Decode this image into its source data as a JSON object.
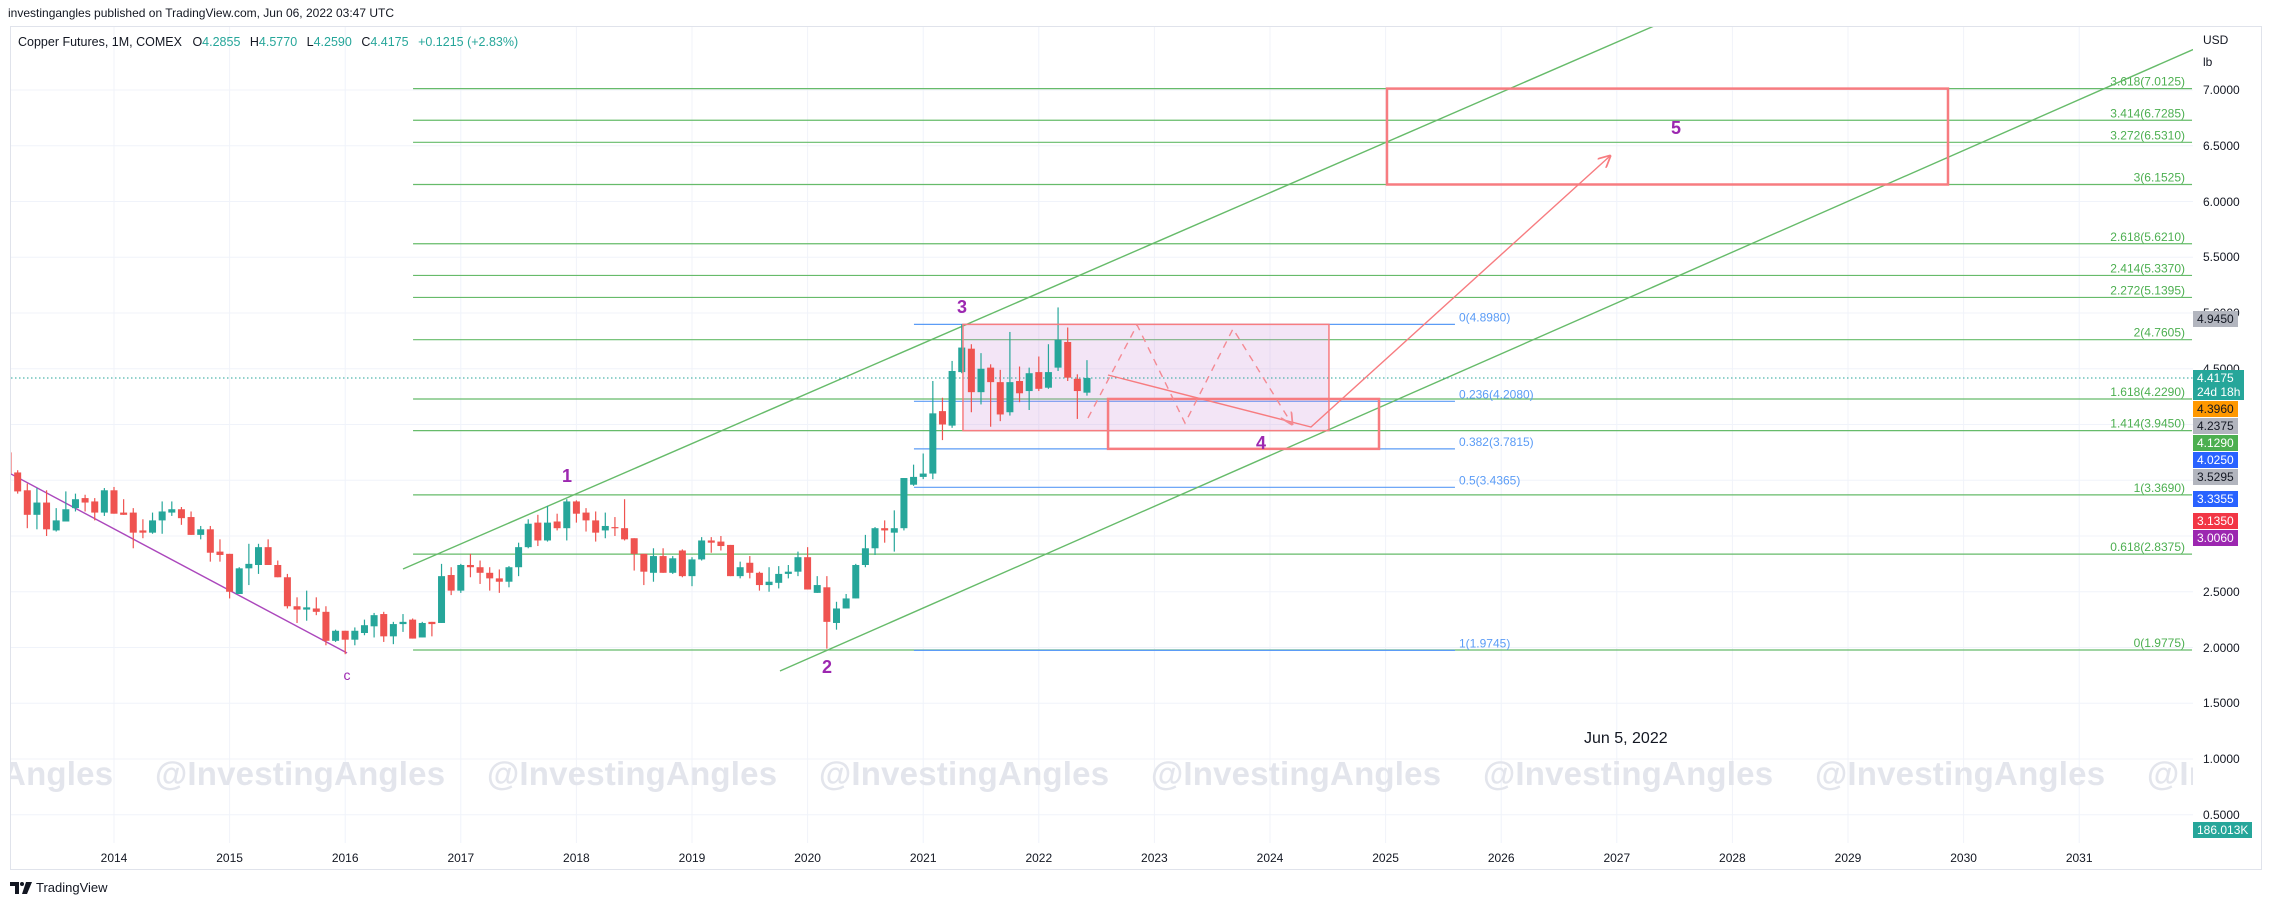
{
  "header": {
    "published": "investingangles published on TradingView.com, Jun 06, 2022 03:47 UTC"
  },
  "legend": {
    "symbol": "Copper Futures, 1M, COMEX",
    "open_label": "O",
    "open": "4.2855",
    "high_label": "H",
    "high": "4.5770",
    "low_label": "L",
    "low": "4.2590",
    "close_label": "C",
    "close": "4.4175",
    "change": "+0.1215 (+2.83%)"
  },
  "price_axis": {
    "currency": "USD",
    "unit": "lb",
    "ticks": [
      {
        "p": 7.0,
        "label": "7.0000"
      },
      {
        "p": 6.5,
        "label": "6.5000"
      },
      {
        "p": 6.0,
        "label": "6.0000"
      },
      {
        "p": 5.5,
        "label": "5.5000"
      },
      {
        "p": 5.0,
        "label": "5.0000"
      },
      {
        "p": 4.5,
        "label": "4.5000"
      },
      {
        "p": 2.5,
        "label": "2.5000"
      },
      {
        "p": 2.0,
        "label": "2.0000"
      },
      {
        "p": 1.5,
        "label": "1.5000"
      },
      {
        "p": 1.0,
        "label": "1.0000"
      },
      {
        "p": 0.5,
        "label": "0.5000"
      }
    ]
  },
  "price_badges": [
    {
      "label": "4.9450",
      "p": 4.945,
      "bg": "#b2b5be",
      "fg": "#131722"
    },
    {
      "label": "4.4175",
      "sub": "24d 18h",
      "p": 4.4175,
      "bg": "#26a69a",
      "fg": "#ffffff"
    },
    {
      "label": "4.3960",
      "p": 4.396,
      "bg": "#ff9800",
      "fg": "#131722"
    },
    {
      "label": "4.2375",
      "p": 4.2375,
      "bg": "#b2b5be",
      "fg": "#131722"
    },
    {
      "label": "4.1290",
      "p": 4.129,
      "bg": "#4caf50",
      "fg": "#ffffff"
    },
    {
      "label": "4.0250",
      "p": 4.025,
      "bg": "#2962ff",
      "fg": "#ffffff"
    },
    {
      "label": "3.5295",
      "p": 3.5295,
      "bg": "#b2b5be",
      "fg": "#131722"
    },
    {
      "label": "3.3355",
      "p": 3.3355,
      "bg": "#2962ff",
      "fg": "#ffffff"
    },
    {
      "label": "3.1350",
      "p": 3.135,
      "bg": "#f23645",
      "fg": "#ffffff"
    },
    {
      "label": "3.0060",
      "p": 3.006,
      "bg": "#9c27b0",
      "fg": "#ffffff"
    }
  ],
  "volume_badge": {
    "label": "186.013K",
    "bg": "#26a69a"
  },
  "time_axis": {
    "ticks": [
      "2014",
      "2015",
      "2016",
      "2017",
      "2018",
      "2019",
      "2020",
      "2021",
      "2022",
      "2023",
      "2024",
      "2025",
      "2026",
      "2027",
      "2028",
      "2029",
      "2030",
      "2031"
    ]
  },
  "date_label": "Jun 5, 2022",
  "watermark": {
    "text": "@InvestingAngles"
  },
  "footer": {
    "brand": "TradingView"
  },
  "colors": {
    "up": "#26a69a",
    "down": "#ef5350",
    "wave_label": "#9c27b0",
    "grid": "#f0f3fa"
  },
  "chart_data": {
    "type": "candlestick",
    "title": "Copper Futures, 1M, COMEX",
    "interval": "1M",
    "xlabel": "",
    "ylabel": "USD / lb",
    "ylim": [
      0.5,
      7.0
    ],
    "grid": true,
    "last_price": 4.4175,
    "candles": {
      "start": "2013-02",
      "fields": [
        "open",
        "high",
        "low",
        "close"
      ],
      "ohlc": [
        [
          3.75,
          3.76,
          3.55,
          3.56
        ],
        [
          3.57,
          3.59,
          3.38,
          3.4
        ],
        [
          3.41,
          3.47,
          3.07,
          3.19
        ],
        [
          3.19,
          3.43,
          3.06,
          3.3
        ],
        [
          3.3,
          3.41,
          3.0,
          3.06
        ],
        [
          3.05,
          3.25,
          3.04,
          3.14
        ],
        [
          3.13,
          3.4,
          3.13,
          3.24
        ],
        [
          3.25,
          3.38,
          3.22,
          3.33
        ],
        [
          3.34,
          3.37,
          3.22,
          3.3
        ],
        [
          3.31,
          3.34,
          3.14,
          3.21
        ],
        [
          3.21,
          3.43,
          3.18,
          3.41
        ],
        [
          3.41,
          3.44,
          3.2,
          3.2
        ],
        [
          3.21,
          3.33,
          3.19,
          3.19
        ],
        [
          3.21,
          3.25,
          2.89,
          3.03
        ],
        [
          3.05,
          3.15,
          2.98,
          3.03
        ],
        [
          3.03,
          3.21,
          3.02,
          3.14
        ],
        [
          3.14,
          3.31,
          3.02,
          3.22
        ],
        [
          3.21,
          3.31,
          3.18,
          3.24
        ],
        [
          3.24,
          3.26,
          3.1,
          3.16
        ],
        [
          3.17,
          3.22,
          3.01,
          3.01
        ],
        [
          3.01,
          3.09,
          2.97,
          3.06
        ],
        [
          3.06,
          3.09,
          2.77,
          2.85
        ],
        [
          2.86,
          2.97,
          2.77,
          2.83
        ],
        [
          2.84,
          2.84,
          2.44,
          2.5
        ],
        [
          2.48,
          2.72,
          2.48,
          2.71
        ],
        [
          2.71,
          2.93,
          2.56,
          2.75
        ],
        [
          2.74,
          2.93,
          2.66,
          2.9
        ],
        [
          2.9,
          2.97,
          2.74,
          2.74
        ],
        [
          2.74,
          2.78,
          2.63,
          2.63
        ],
        [
          2.63,
          2.66,
          2.35,
          2.37
        ],
        [
          2.37,
          2.45,
          2.22,
          2.34
        ],
        [
          2.34,
          2.51,
          2.24,
          2.36
        ],
        [
          2.35,
          2.45,
          2.29,
          2.32
        ],
        [
          2.32,
          2.37,
          2.02,
          2.06
        ],
        [
          2.06,
          2.16,
          2.05,
          2.15
        ],
        [
          2.15,
          2.15,
          1.94,
          2.07
        ],
        [
          2.07,
          2.18,
          2.02,
          2.15
        ],
        [
          2.13,
          2.25,
          2.11,
          2.2
        ],
        [
          2.19,
          2.31,
          2.09,
          2.29
        ],
        [
          2.3,
          2.32,
          2.05,
          2.1
        ],
        [
          2.1,
          2.23,
          2.03,
          2.21
        ],
        [
          2.21,
          2.3,
          2.14,
          2.23
        ],
        [
          2.25,
          2.26,
          2.08,
          2.08
        ],
        [
          2.09,
          2.23,
          2.09,
          2.22
        ],
        [
          2.23,
          2.23,
          2.1,
          2.21
        ],
        [
          2.22,
          2.75,
          2.22,
          2.64
        ],
        [
          2.65,
          2.72,
          2.47,
          2.51
        ],
        [
          2.51,
          2.75,
          2.49,
          2.74
        ],
        [
          2.74,
          2.84,
          2.63,
          2.72
        ],
        [
          2.72,
          2.78,
          2.57,
          2.67
        ],
        [
          2.67,
          2.72,
          2.51,
          2.62
        ],
        [
          2.62,
          2.7,
          2.49,
          2.59
        ],
        [
          2.59,
          2.73,
          2.54,
          2.72
        ],
        [
          2.72,
          2.94,
          2.64,
          2.9
        ],
        [
          2.9,
          3.15,
          2.89,
          3.11
        ],
        [
          3.12,
          3.19,
          2.91,
          2.96
        ],
        [
          2.96,
          3.27,
          2.95,
          3.12
        ],
        [
          3.13,
          3.2,
          3.05,
          3.07
        ],
        [
          3.07,
          3.33,
          2.96,
          3.31
        ],
        [
          3.31,
          3.32,
          3.12,
          3.2
        ],
        [
          3.21,
          3.25,
          3.04,
          3.14
        ],
        [
          3.14,
          3.22,
          2.95,
          3.03
        ],
        [
          3.05,
          3.21,
          2.98,
          3.09
        ],
        [
          3.08,
          3.17,
          3.0,
          3.07
        ],
        [
          3.07,
          3.33,
          2.96,
          2.97
        ],
        [
          2.98,
          2.98,
          2.69,
          2.84
        ],
        [
          2.84,
          2.84,
          2.56,
          2.68
        ],
        [
          2.67,
          2.89,
          2.59,
          2.82
        ],
        [
          2.82,
          2.89,
          2.67,
          2.67
        ],
        [
          2.67,
          2.82,
          2.66,
          2.8
        ],
        [
          2.87,
          2.88,
          2.63,
          2.64
        ],
        [
          2.64,
          2.81,
          2.55,
          2.79
        ],
        [
          2.79,
          2.99,
          2.78,
          2.96
        ],
        [
          2.96,
          2.99,
          2.85,
          2.94
        ],
        [
          2.95,
          3.0,
          2.87,
          2.91
        ],
        [
          2.92,
          2.92,
          2.64,
          2.64
        ],
        [
          2.64,
          2.77,
          2.62,
          2.72
        ],
        [
          2.76,
          2.82,
          2.62,
          2.67
        ],
        [
          2.67,
          2.68,
          2.51,
          2.56
        ],
        [
          2.56,
          2.72,
          2.5,
          2.59
        ],
        [
          2.58,
          2.73,
          2.53,
          2.66
        ],
        [
          2.66,
          2.74,
          2.62,
          2.68
        ],
        [
          2.68,
          2.86,
          2.64,
          2.81
        ],
        [
          2.81,
          2.9,
          2.52,
          2.52
        ],
        [
          2.49,
          2.64,
          2.49,
          2.56
        ],
        [
          2.54,
          2.64,
          1.99,
          2.23
        ],
        [
          2.22,
          2.41,
          2.16,
          2.35
        ],
        [
          2.35,
          2.48,
          2.35,
          2.44
        ],
        [
          2.44,
          2.75,
          2.44,
          2.74
        ],
        [
          2.74,
          3.01,
          2.72,
          2.89
        ],
        [
          2.89,
          3.08,
          2.83,
          3.07
        ],
        [
          3.07,
          3.14,
          2.94,
          3.05
        ],
        [
          3.03,
          3.23,
          2.86,
          3.07
        ],
        [
          3.07,
          3.52,
          3.05,
          3.52
        ],
        [
          3.46,
          3.64,
          3.45,
          3.53
        ],
        [
          3.53,
          3.74,
          3.51,
          3.56
        ],
        [
          3.56,
          4.39,
          3.51,
          4.1
        ],
        [
          4.12,
          4.24,
          3.86,
          4.0
        ],
        [
          3.99,
          4.57,
          3.97,
          4.48
        ],
        [
          4.47,
          4.9,
          4.46,
          4.69
        ],
        [
          4.68,
          4.72,
          4.11,
          4.29
        ],
        [
          4.29,
          4.64,
          4.18,
          4.5
        ],
        [
          4.51,
          4.54,
          3.98,
          4.38
        ],
        [
          4.38,
          4.49,
          4.03,
          4.09
        ],
        [
          4.11,
          4.83,
          4.08,
          4.38
        ],
        [
          4.39,
          4.52,
          4.2,
          4.28
        ],
        [
          4.3,
          4.51,
          4.13,
          4.46
        ],
        [
          4.47,
          4.61,
          4.3,
          4.32
        ],
        [
          4.33,
          4.72,
          4.32,
          4.47
        ],
        [
          4.51,
          5.05,
          4.48,
          4.76
        ],
        [
          4.74,
          4.87,
          4.39,
          4.42
        ],
        [
          4.41,
          4.45,
          4.05,
          4.3
        ],
        [
          4.2855,
          4.577,
          4.259,
          4.4175
        ]
      ]
    },
    "fib_extension": {
      "t_start": 2016.587,
      "t_end": 2031.976,
      "color": "#66bb6a",
      "text_color": "#4caf50",
      "levels": [
        {
          "label": "3.618(7.0125)",
          "price": 7.0125
        },
        {
          "label": "3.414(6.7285)",
          "price": 6.7285
        },
        {
          "label": "3.272(6.5310)",
          "price": 6.531
        },
        {
          "label": "3(6.1525)",
          "price": 6.1525
        },
        {
          "label": "2.618(5.6210)",
          "price": 5.621
        },
        {
          "label": "2.414(5.3370)",
          "price": 5.337
        },
        {
          "label": "2.272(5.1395)",
          "price": 5.1395
        },
        {
          "label": "2(4.7605)",
          "price": 4.7605
        },
        {
          "label": "1.618(4.2290)",
          "price": 4.229
        },
        {
          "label": "1.414(3.9450)",
          "price": 3.945
        },
        {
          "label": "1(3.3690)",
          "price": 3.369
        },
        {
          "label": "0.618(2.8375)",
          "price": 2.8375
        },
        {
          "label": "0(1.9775)",
          "price": 1.9775
        }
      ]
    },
    "fib_retracement": {
      "t_start": 2020.92,
      "t_end": 2025.6,
      "color": "#5b9cf6",
      "levels": [
        {
          "label": "0(4.8980)",
          "price": 4.898
        },
        {
          "label": "0.236(4.2080)",
          "price": 4.208
        },
        {
          "label": "0.382(3.7815)",
          "price": 3.7815
        },
        {
          "label": "0.5(3.4365)",
          "price": 3.4365
        },
        {
          "label": "1(1.9745)",
          "price": 1.9745
        }
      ]
    },
    "trendlines": [
      {
        "name": "upper-channel-line",
        "color": "#66bb6a",
        "points": [
          [
            2016.5,
            2.704
          ],
          [
            2027.72,
            7.753
          ]
        ]
      },
      {
        "name": "lower-channel-line",
        "color": "#66bb6a",
        "points": [
          [
            2019.761,
            1.789
          ],
          [
            2031.985,
            7.363
          ]
        ]
      },
      {
        "name": "downtrend-line",
        "color": "#ab47bc",
        "points": [
          [
            2013.109,
            3.556
          ],
          [
            2016.016,
            1.951
          ]
        ]
      }
    ],
    "rectangles": [
      {
        "name": "wave-3-range-box",
        "t": [
          2021.344,
          2024.51
        ],
        "p": [
          4.898,
          3.945
        ],
        "stroke": "#f77c80",
        "fill": "rgba(206,147,216,0.24)",
        "width": 1.5
      },
      {
        "name": "wave-4-target-box",
        "t": [
          2022.599,
          2024.943
        ],
        "p": [
          4.229,
          3.7815
        ],
        "stroke": "#f77c80",
        "fill": "none",
        "width": 2.5
      },
      {
        "name": "wave-5-target-box",
        "t": [
          2025.012,
          2029.865
        ],
        "p": [
          7.0125,
          6.1525
        ],
        "stroke": "#f77c80",
        "fill": "none",
        "width": 2.5
      }
    ],
    "paths": [
      {
        "name": "projected-path-arrow",
        "color": "#f77c80",
        "dashed": false,
        "points": [
          [
            2022.599,
            4.444
          ],
          [
            2024.355,
            3.978
          ],
          [
            2026.941,
            6.408
          ]
        ]
      },
      {
        "name": "triangle-zigzag-path",
        "color": "#f48a93",
        "dashed": true,
        "points": [
          [
            2022.426,
            4.058
          ],
          [
            2022.85,
            4.892
          ],
          [
            2023.265,
            4.013
          ],
          [
            2023.68,
            4.857
          ],
          [
            2024.19,
            4.004
          ]
        ]
      }
    ],
    "wave_labels": [
      {
        "text": "1",
        "t": 2017.919,
        "p": 3.538,
        "size": 18
      },
      {
        "text": "2",
        "t": 2020.168,
        "p": 1.825,
        "size": 18
      },
      {
        "text": "3",
        "t": 2021.336,
        "p": 5.054,
        "size": 18
      },
      {
        "text": "4",
        "t": 2023.922,
        "p": 3.834,
        "size": 18
      },
      {
        "text": "5",
        "t": 2027.512,
        "p": 6.659,
        "size": 18
      },
      {
        "text": "c",
        "t": 2016.016,
        "p": 1.753,
        "size": 14
      }
    ]
  }
}
